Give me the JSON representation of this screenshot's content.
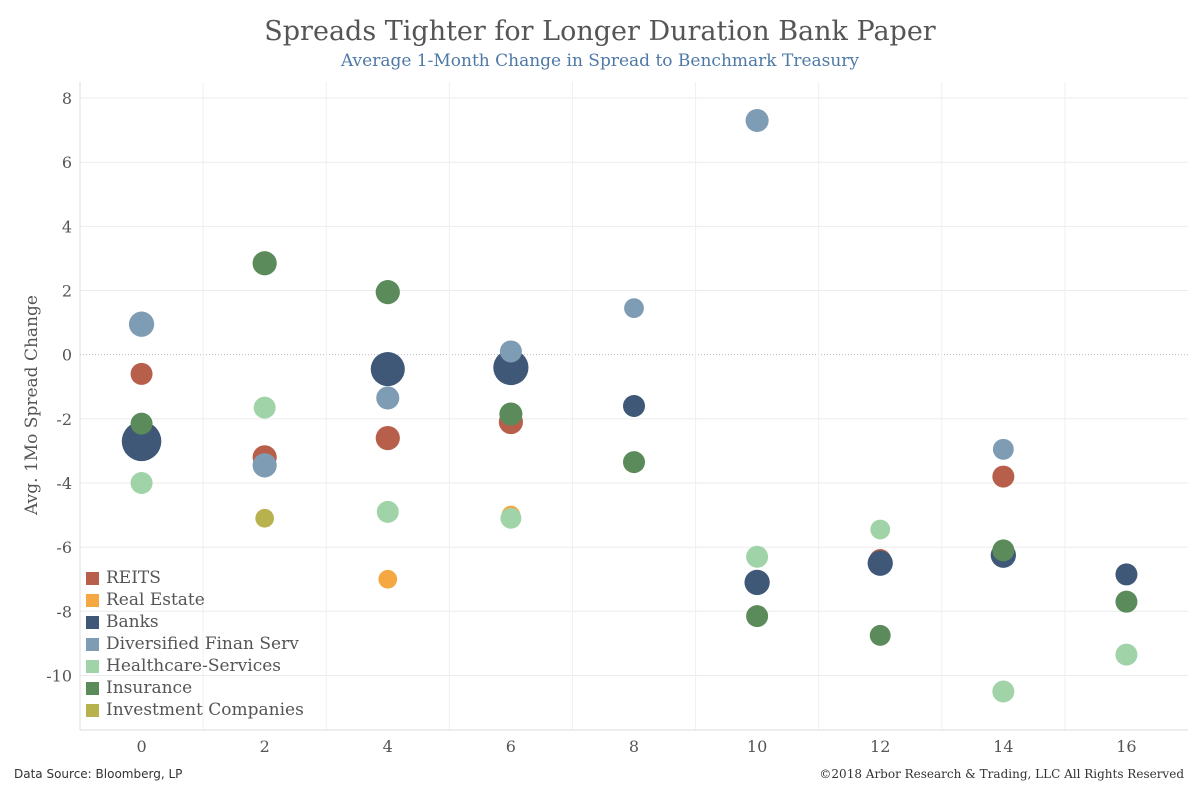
{
  "title": "Spreads Tighter for Longer Duration Bank Paper",
  "subtitle": "Average 1-Month Change in Spread to Benchmark Treasury",
  "footer": {
    "source": "Data Source: Bloomberg, LP",
    "copyright": "©2018 Arbor Research & Trading, LLC  All Rights Reserved"
  },
  "chart_data": {
    "type": "scatter",
    "title": "Spreads Tighter for Longer Duration Bank Paper",
    "subtitle": "Average 1-Month Change in Spread to Benchmark Treasury",
    "xlabel": "",
    "ylabel": "Avg. 1Mo Spread Change",
    "xlim": [
      -1,
      17
    ],
    "ylim": [
      -11.7,
      8.5
    ],
    "x_ticks": [
      0,
      2,
      4,
      6,
      8,
      10,
      12,
      14,
      16
    ],
    "y_ticks": [
      8,
      6,
      4,
      2,
      0,
      -2,
      -4,
      -6,
      -8,
      -10
    ],
    "grid": true,
    "legend_position": "bottom-left",
    "series": [
      {
        "name": "REITS",
        "color": "#b85f4b",
        "points": [
          {
            "x": 0,
            "y": -0.6,
            "size": 1
          },
          {
            "x": 2,
            "y": -3.2,
            "size": 1.1
          },
          {
            "x": 4,
            "y": -2.6,
            "size": 1.1
          },
          {
            "x": 6,
            "y": -2.1,
            "size": 1.1
          },
          {
            "x": 12,
            "y": -6.4,
            "size": 1
          },
          {
            "x": 14,
            "y": -3.8,
            "size": 1
          }
        ]
      },
      {
        "name": "Real Estate",
        "color": "#f5a742",
        "points": [
          {
            "x": 4,
            "y": -7.0,
            "size": 0.85
          },
          {
            "x": 6,
            "y": -5.0,
            "size": 0.85
          }
        ]
      },
      {
        "name": "Banks",
        "color": "#3f5878",
        "points": [
          {
            "x": 0,
            "y": -2.7,
            "size": 1.8
          },
          {
            "x": 4,
            "y": -0.45,
            "size": 1.55
          },
          {
            "x": 6,
            "y": -0.4,
            "size": 1.6
          },
          {
            "x": 8,
            "y": -1.6,
            "size": 1
          },
          {
            "x": 10,
            "y": -7.1,
            "size": 1.15
          },
          {
            "x": 12,
            "y": -6.5,
            "size": 1.15
          },
          {
            "x": 14,
            "y": -6.25,
            "size": 1.15
          },
          {
            "x": 16,
            "y": -6.85,
            "size": 1
          }
        ]
      },
      {
        "name": "Diversified Finan Serv",
        "color": "#7f9cb5",
        "points": [
          {
            "x": 0,
            "y": 0.95,
            "size": 1.15
          },
          {
            "x": 2,
            "y": -3.45,
            "size": 1.1
          },
          {
            "x": 4,
            "y": -1.35,
            "size": 1.05
          },
          {
            "x": 6,
            "y": 0.1,
            "size": 1
          },
          {
            "x": 8,
            "y": 1.45,
            "size": 0.9
          },
          {
            "x": 10,
            "y": 7.3,
            "size": 1.05
          },
          {
            "x": 14,
            "y": -2.95,
            "size": 0.95
          }
        ]
      },
      {
        "name": "Healthcare-Services",
        "color": "#a0d3a8",
        "points": [
          {
            "x": 0,
            "y": -4.0,
            "size": 1
          },
          {
            "x": 2,
            "y": -1.65,
            "size": 1
          },
          {
            "x": 4,
            "y": -4.9,
            "size": 1
          },
          {
            "x": 6,
            "y": -5.1,
            "size": 0.95
          },
          {
            "x": 10,
            "y": -6.3,
            "size": 1
          },
          {
            "x": 12,
            "y": -5.45,
            "size": 0.9
          },
          {
            "x": 14,
            "y": -10.5,
            "size": 1
          },
          {
            "x": 16,
            "y": -9.35,
            "size": 1
          }
        ]
      },
      {
        "name": "Insurance",
        "color": "#5b8a5b",
        "points": [
          {
            "x": 0,
            "y": -2.15,
            "size": 1
          },
          {
            "x": 2,
            "y": 2.85,
            "size": 1.1
          },
          {
            "x": 4,
            "y": 1.95,
            "size": 1.1
          },
          {
            "x": 6,
            "y": -1.85,
            "size": 1.05
          },
          {
            "x": 8,
            "y": -3.35,
            "size": 1
          },
          {
            "x": 10,
            "y": -8.15,
            "size": 1
          },
          {
            "x": 12,
            "y": -8.75,
            "size": 0.95
          },
          {
            "x": 14,
            "y": -6.1,
            "size": 1
          },
          {
            "x": 16,
            "y": -7.7,
            "size": 1
          }
        ]
      },
      {
        "name": "Investment Companies",
        "color": "#b8b24e",
        "points": [
          {
            "x": 2,
            "y": -5.1,
            "size": 0.85
          }
        ]
      }
    ]
  }
}
